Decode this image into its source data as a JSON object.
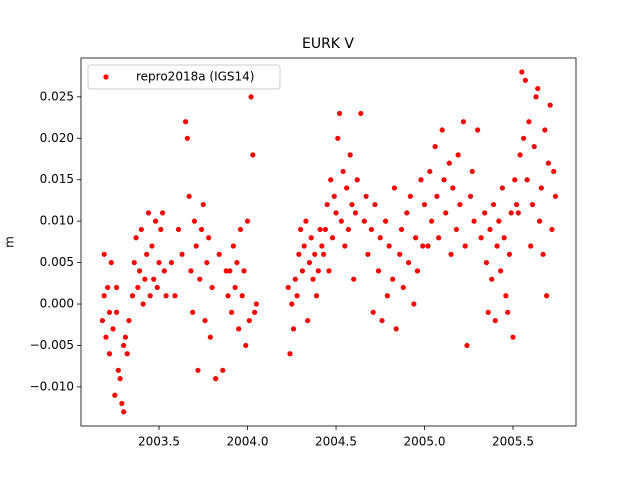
{
  "chart_data": {
    "type": "scatter",
    "title": "EURK V",
    "y_label": "m",
    "x": [
      2003.18,
      2003.19,
      2003.2,
      2003.21,
      2003.22,
      2003.23,
      2003.24,
      2003.25,
      2003.26,
      2003.27,
      2003.28,
      2003.29,
      2003.3,
      2003.31,
      2003.32,
      2003.33,
      2003.19,
      2003.22,
      2003.26,
      2003.3,
      2003.35,
      2003.36,
      2003.37,
      2003.38,
      2003.39,
      2003.4,
      2003.41,
      2003.42,
      2003.43,
      2003.44,
      2003.45,
      2003.46,
      2003.47,
      2003.48,
      2003.49,
      2003.5,
      2003.51,
      2003.52,
      2003.53,
      2003.54,
      2003.57,
      2003.59,
      2003.61,
      2003.63,
      2003.65,
      2003.66,
      2003.67,
      2003.68,
      2003.69,
      2003.7,
      2003.71,
      2003.72,
      2003.73,
      2003.74,
      2003.75,
      2003.76,
      2003.77,
      2003.78,
      2003.79,
      2003.8,
      2003.82,
      2003.84,
      2003.86,
      2003.88,
      2003.89,
      2003.9,
      2003.91,
      2003.92,
      2003.93,
      2003.94,
      2003.95,
      2003.96,
      2003.97,
      2003.98,
      2003.99,
      2004.0,
      2004.01,
      2004.02,
      2004.03,
      2004.04,
      2004.05,
      2004.23,
      2004.24,
      2004.25,
      2004.26,
      2004.27,
      2004.28,
      2004.29,
      2004.3,
      2004.31,
      2004.32,
      2004.33,
      2004.34,
      2004.35,
      2004.36,
      2004.37,
      2004.38,
      2004.39,
      2004.4,
      2004.41,
      2004.42,
      2004.43,
      2004.44,
      2004.45,
      2004.46,
      2004.47,
      2004.48,
      2004.49,
      2004.5,
      2004.51,
      2004.52,
      2004.53,
      2004.54,
      2004.55,
      2004.56,
      2004.57,
      2004.58,
      2004.59,
      2004.6,
      2004.61,
      2004.62,
      2004.64,
      2004.66,
      2004.67,
      2004.68,
      2004.7,
      2004.71,
      2004.72,
      2004.74,
      2004.75,
      2004.76,
      2004.78,
      2004.79,
      2004.8,
      2004.82,
      2004.83,
      2004.84,
      2004.86,
      2004.87,
      2004.88,
      2004.9,
      2004.91,
      2004.92,
      2004.94,
      2004.95,
      2004.96,
      2004.98,
      2004.99,
      2005.0,
      2005.02,
      2005.03,
      2005.04,
      2005.06,
      2005.07,
      2005.08,
      2005.1,
      2005.11,
      2005.12,
      2005.14,
      2005.15,
      2005.16,
      2005.18,
      2005.19,
      2005.2,
      2005.22,
      2005.23,
      2005.24,
      2005.26,
      2005.27,
      2005.28,
      2005.3,
      2005.32,
      2005.34,
      2005.35,
      2005.36,
      2005.37,
      2005.38,
      2005.39,
      2005.4,
      2005.41,
      2005.42,
      2005.43,
      2005.44,
      2005.45,
      2005.46,
      2005.47,
      2005.48,
      2005.49,
      2005.5,
      2005.51,
      2005.52,
      2005.53,
      2005.54,
      2005.55,
      2005.56,
      2005.57,
      2005.58,
      2005.59,
      2005.6,
      2005.61,
      2005.62,
      2005.63,
      2005.64,
      2005.65,
      2005.66,
      2005.67,
      2005.68,
      2005.69,
      2005.7,
      2005.71,
      2005.72,
      2005.73,
      2005.74
    ],
    "series": [
      {
        "name": "repro2018a (IGS14)",
        "color": "#ff0000",
        "values": [
          -0.002,
          0.006,
          -0.004,
          0.002,
          -0.006,
          0.005,
          -0.003,
          -0.011,
          -0.001,
          -0.008,
          -0.009,
          -0.012,
          -0.013,
          -0.004,
          -0.006,
          -0.002,
          0.001,
          -0.001,
          0.002,
          -0.005,
          0.001,
          0.005,
          0.008,
          0.002,
          0.004,
          0.009,
          0.0,
          0.003,
          0.006,
          0.011,
          0.001,
          0.007,
          0.003,
          0.01,
          0.002,
          0.005,
          0.009,
          0.011,
          0.004,
          0.001,
          0.005,
          0.001,
          0.009,
          0.006,
          0.022,
          0.02,
          0.013,
          0.004,
          -0.001,
          0.01,
          0.007,
          -0.008,
          0.003,
          0.009,
          0.012,
          -0.002,
          0.005,
          0.008,
          -0.004,
          0.002,
          -0.009,
          0.006,
          -0.008,
          0.004,
          0.001,
          0.004,
          -0.001,
          0.007,
          0.002,
          0.005,
          -0.003,
          0.009,
          0.001,
          0.004,
          -0.005,
          0.01,
          -0.002,
          0.025,
          0.018,
          -0.001,
          0.0,
          0.002,
          -0.006,
          0.0,
          -0.003,
          0.003,
          0.001,
          0.006,
          0.009,
          0.004,
          0.007,
          0.01,
          -0.002,
          0.005,
          0.008,
          0.003,
          0.006,
          0.001,
          0.004,
          0.009,
          0.007,
          0.006,
          0.009,
          0.012,
          0.004,
          0.015,
          0.008,
          0.013,
          0.011,
          0.02,
          0.023,
          0.01,
          0.016,
          0.007,
          0.014,
          0.009,
          0.018,
          0.012,
          0.003,
          0.011,
          0.015,
          0.023,
          0.01,
          0.013,
          0.006,
          0.009,
          -0.001,
          0.012,
          0.004,
          0.008,
          -0.002,
          0.01,
          0.001,
          0.007,
          0.003,
          0.014,
          -0.003,
          0.006,
          0.009,
          0.002,
          0.011,
          0.005,
          0.013,
          0.0,
          0.008,
          0.004,
          0.015,
          0.007,
          0.012,
          0.007,
          0.016,
          0.01,
          0.019,
          0.013,
          0.008,
          0.021,
          0.015,
          0.011,
          0.017,
          0.006,
          0.014,
          0.009,
          0.018,
          0.012,
          0.022,
          0.007,
          -0.005,
          0.013,
          0.016,
          0.01,
          0.021,
          0.008,
          0.011,
          0.005,
          -0.001,
          0.009,
          0.003,
          0.012,
          -0.002,
          0.007,
          0.01,
          0.004,
          0.014,
          0.008,
          0.001,
          -0.001,
          0.006,
          0.011,
          -0.004,
          0.015,
          0.012,
          0.011,
          0.018,
          0.028,
          0.02,
          0.027,
          0.015,
          0.022,
          0.007,
          0.012,
          0.019,
          0.025,
          0.026,
          0.01,
          0.014,
          0.006,
          0.021,
          0.001,
          0.017,
          0.024,
          0.009,
          0.016,
          0.013
        ]
      }
    ],
    "xlim": [
      2003.059,
      2005.856
    ],
    "ylim": [
      -0.01472,
      0.02969
    ],
    "xticks": [
      2003.5,
      {
        "value": 2004,
        "label": "2004.0"
      },
      2004.5,
      {
        "value": 2005,
        "label": "2005.0"
      },
      2005.5
    ],
    "yticks": [
      {
        "value": -0.01,
        "label": "−0.010"
      },
      {
        "value": -0.005,
        "label": "−0.005"
      },
      {
        "value": 0,
        "label": "0.000"
      },
      0.005,
      {
        "value": 0.01,
        "label": "0.010"
      },
      0.015,
      {
        "value": 0.02,
        "label": "0.020"
      },
      0.025
    ],
    "legend": "upper left"
  }
}
